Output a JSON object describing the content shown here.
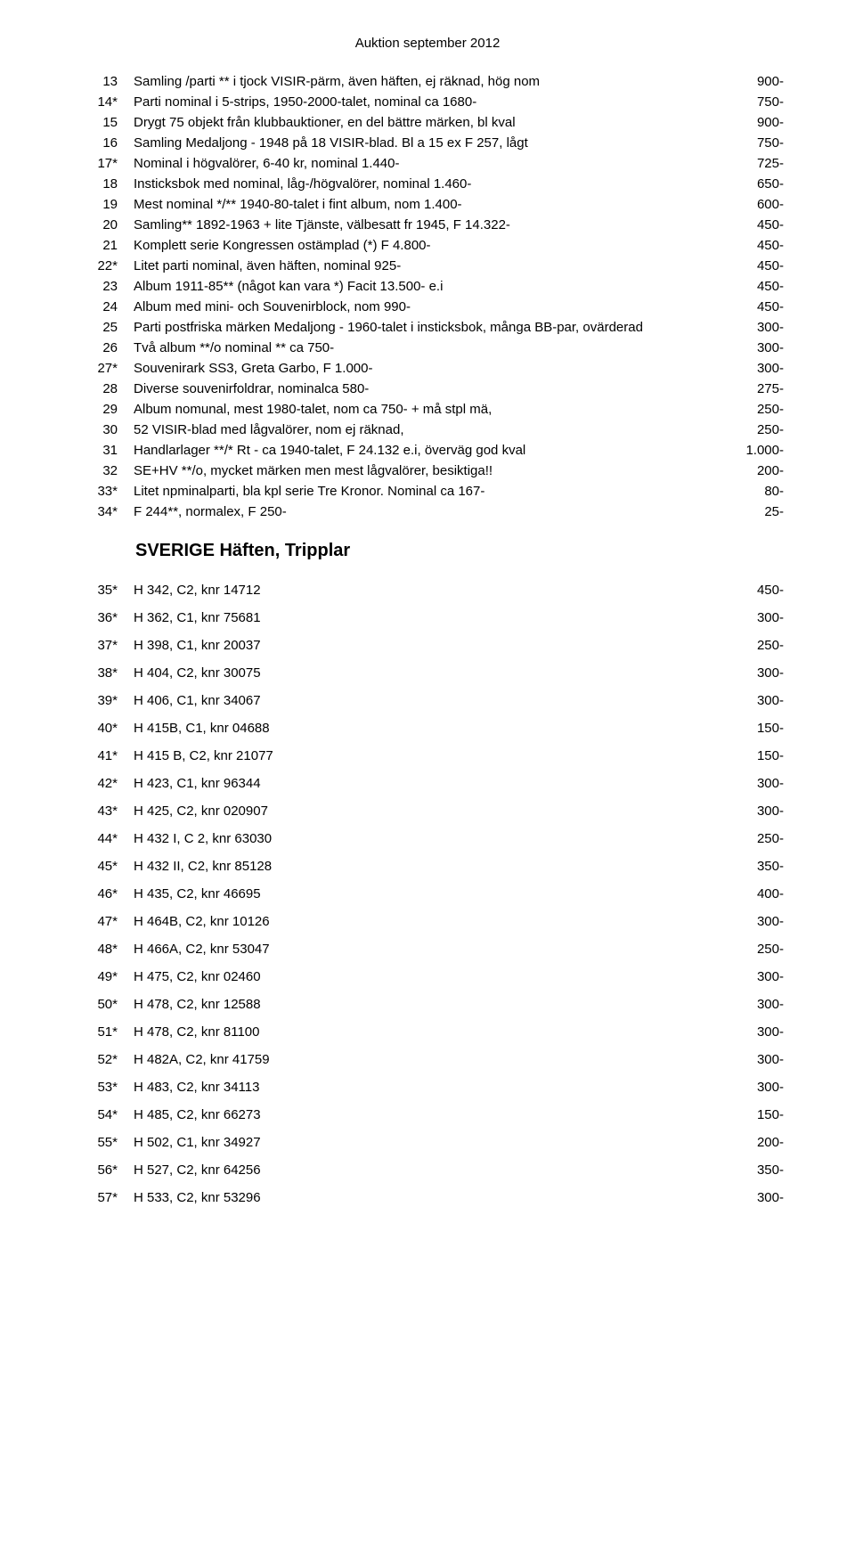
{
  "title": "Auktion september 2012",
  "section1_rows": [
    {
      "lot": "13",
      "desc": "Samling /parti ** i tjock VISIR-pärm, även häften, ej räknad, hög nom",
      "price": "900-"
    },
    {
      "lot": "14*",
      "desc": "Parti nominal i 5-strips, 1950-2000-talet, nominal ca 1680-",
      "price": "750-"
    },
    {
      "lot": "15",
      "desc": "Drygt 75 objekt från klubbauktioner, en del bättre märken, bl kval",
      "price": "900-"
    },
    {
      "lot": "16",
      "desc": "Samling Medaljong - 1948 på 18 VISIR-blad. Bl a 15 ex F 257, lågt",
      "price": "750-"
    },
    {
      "lot": "17*",
      "desc": "Nominal i högvalörer, 6-40 kr, nominal 1.440-",
      "price": "725-"
    },
    {
      "lot": "18",
      "desc": "Insticksbok med nominal, låg-/högvalörer, nominal 1.460-",
      "price": "650-"
    },
    {
      "lot": "19",
      "desc": "Mest nominal */** 1940-80-talet i fint album, nom 1.400-",
      "price": "600-"
    },
    {
      "lot": "20",
      "desc": "Samling** 1892-1963 + lite Tjänste, välbesatt fr 1945, F 14.322-",
      "price": "450-"
    },
    {
      "lot": "21",
      "desc": "Komplett serie Kongressen ostämplad (*) F 4.800-",
      "price": "450-"
    },
    {
      "lot": "22*",
      "desc": "Litet parti nominal, även häften, nominal 925-",
      "price": "450-"
    },
    {
      "lot": "23",
      "desc": "Album 1911-85** (något kan vara *) Facit 13.500- e.i",
      "price": "450-"
    },
    {
      "lot": "24",
      "desc": "Album med mini- och Souvenirblock, nom 990-",
      "price": "450-"
    },
    {
      "lot": "25",
      "desc": "Parti postfriska märken Medaljong - 1960-talet i insticksbok, många BB-par, ovärderad",
      "price": "300-"
    },
    {
      "lot": "26",
      "desc": "Två album **/o nominal ** ca 750-",
      "price": "300-"
    },
    {
      "lot": "27*",
      "desc": "Souvenirark SS3, Greta Garbo, F 1.000-",
      "price": "300-"
    },
    {
      "lot": "28",
      "desc": "Diverse souvenirfoldrar, nominalca 580-",
      "price": "275-"
    },
    {
      "lot": "29",
      "desc": "Album nomunal, mest 1980-talet, nom ca 750- + må stpl mä,",
      "price": "250-"
    },
    {
      "lot": "30",
      "desc": "52 VISIR-blad med lågvalörer, nom ej räknad,",
      "price": "250-"
    },
    {
      "lot": "31",
      "desc": "Handlarlager **/* Rt - ca 1940-talet, F 24.132 e.i, överväg god kval",
      "price": "1.000-"
    },
    {
      "lot": "32",
      "desc": "SE+HV **/o, mycket märken men mest lågvalörer, besiktiga!!",
      "price": "200-"
    },
    {
      "lot": "33*",
      "desc": "Litet npminalparti, bla kpl serie Tre Kronor. Nominal ca 167-",
      "price": "80-"
    },
    {
      "lot": "34*",
      "desc": "F 244**, normalex, F 250-",
      "price": "25-"
    }
  ],
  "section2_heading": "SVERIGE  Häften, Tripplar",
  "section2_rows": [
    {
      "lot": "35*",
      "desc": "H 342, C2, knr 14712",
      "price": "450-"
    },
    {
      "lot": "36*",
      "desc": "H 362, C1, knr 75681",
      "price": "300-"
    },
    {
      "lot": "37*",
      "desc": "H 398, C1, knr 20037",
      "price": "250-"
    },
    {
      "lot": "38*",
      "desc": "H 404, C2, knr 30075",
      "price": "300-"
    },
    {
      "lot": "39*",
      "desc": "H 406, C1, knr 34067",
      "price": "300-"
    },
    {
      "lot": "40*",
      "desc": "H 415B, C1, knr 04688",
      "price": "150-"
    },
    {
      "lot": "41*",
      "desc": "H 415 B, C2, knr 21077",
      "price": "150-"
    },
    {
      "lot": "42*",
      "desc": "H 423, C1, knr 96344",
      "price": "300-"
    },
    {
      "lot": "43*",
      "desc": "H 425, C2, knr 020907",
      "price": "300-"
    },
    {
      "lot": "44*",
      "desc": "H 432 I, C 2, knr 63030",
      "price": "250-"
    },
    {
      "lot": "45*",
      "desc": "H 432 II, C2, knr 85128",
      "price": "350-"
    },
    {
      "lot": "46*",
      "desc": "H 435, C2, knr 46695",
      "price": "400-"
    },
    {
      "lot": "47*",
      "desc": "H 464B, C2, knr 10126",
      "price": "300-"
    },
    {
      "lot": "48*",
      "desc": "H 466A, C2, knr 53047",
      "price": "250-"
    },
    {
      "lot": "49*",
      "desc": "H 475, C2, knr 02460",
      "price": "300-"
    },
    {
      "lot": "50*",
      "desc": "H 478, C2, knr 12588",
      "price": "300-"
    },
    {
      "lot": "51*",
      "desc": "H 478, C2, knr 81100",
      "price": "300-"
    },
    {
      "lot": "52*",
      "desc": "H 482A, C2, knr 41759",
      "price": "300-"
    },
    {
      "lot": "53*",
      "desc": "H 483, C2, knr 34113",
      "price": "300-"
    },
    {
      "lot": "54*",
      "desc": "H 485, C2, knr 66273",
      "price": "150-"
    },
    {
      "lot": "55*",
      "desc": "H 502, C1, knr 34927",
      "price": "200-"
    },
    {
      "lot": "56*",
      "desc": "H 527, C2, knr 64256",
      "price": "350-"
    },
    {
      "lot": "57*",
      "desc": "H 533, C2, knr 53296",
      "price": "300-"
    }
  ]
}
